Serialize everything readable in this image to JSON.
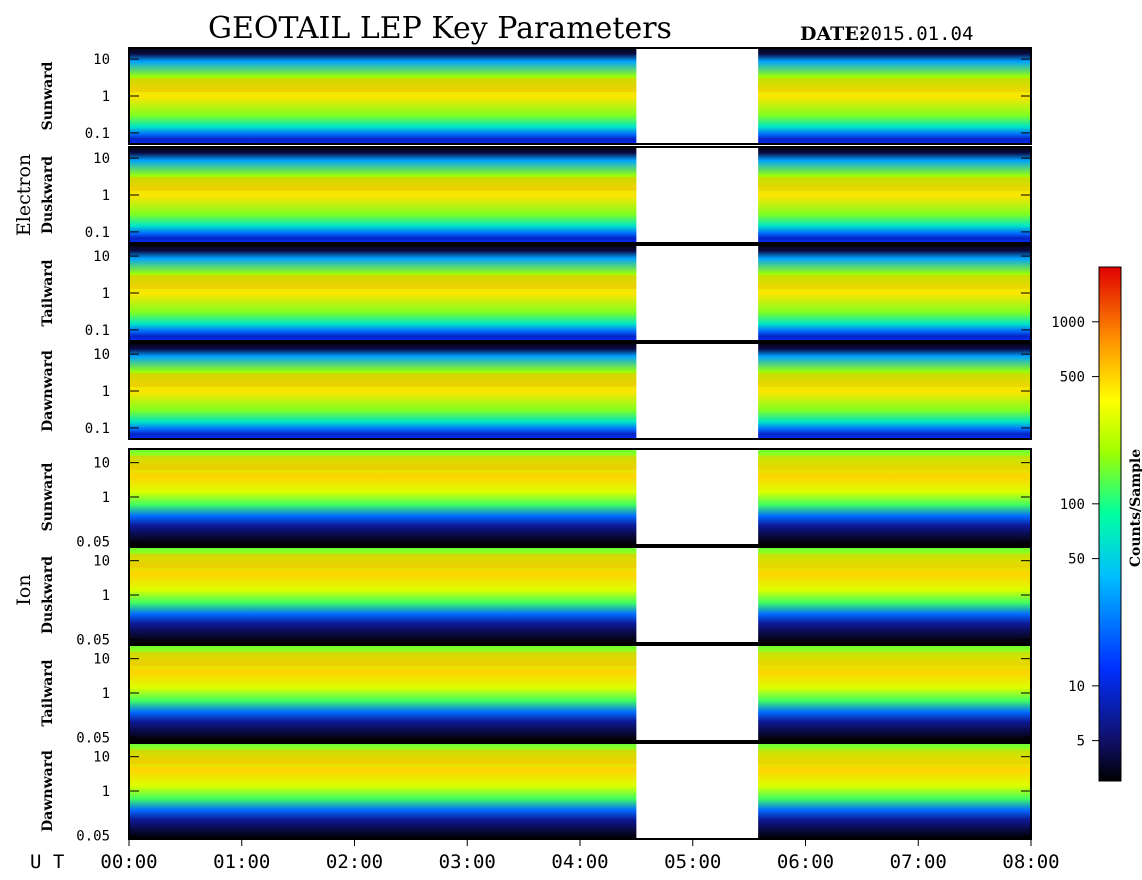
{
  "title": "GEOTAIL LEP Key Parameters",
  "date_label": "DATE:",
  "date_value": "2015.01.04",
  "chart_data": {
    "type": "heatmap",
    "time_axis": {
      "label": "U T",
      "ticks": [
        "00:00",
        "01:00",
        "02:00",
        "03:00",
        "04:00",
        "05:00",
        "06:00",
        "07:00",
        "08:00"
      ],
      "range_hours": [
        0,
        8
      ],
      "data_gap_hours": [
        4.5,
        5.58
      ]
    },
    "groups": [
      {
        "name": "Electron",
        "yscale": "log",
        "ylim": [
          0.05,
          20
        ],
        "y_ticks": [
          "10",
          "1",
          "0.1"
        ],
        "panels": [
          "Sunward",
          "Duskward",
          "Tailward",
          "Dawnward"
        ],
        "peak_band_value": 2
      },
      {
        "name": "Ion",
        "yscale": "log",
        "ylim": [
          0.04,
          25
        ],
        "y_ticks": [
          "10",
          "1",
          "0.05"
        ],
        "panels": [
          "Sunward",
          "Duskward",
          "Tailward",
          "Dawnward"
        ],
        "peak_band_value": 10
      }
    ],
    "colorbar": {
      "label": "Counts/Sample",
      "scale": "log",
      "range": [
        3,
        2000
      ],
      "ticks": [
        "1000",
        "500",
        "100",
        "50",
        "10",
        "5"
      ],
      "colors": [
        "#000000",
        "#10106a",
        "#0030ff",
        "#00c0ff",
        "#00ffa0",
        "#a0ff00",
        "#ffff00",
        "#ff9000",
        "#e00000"
      ]
    }
  }
}
